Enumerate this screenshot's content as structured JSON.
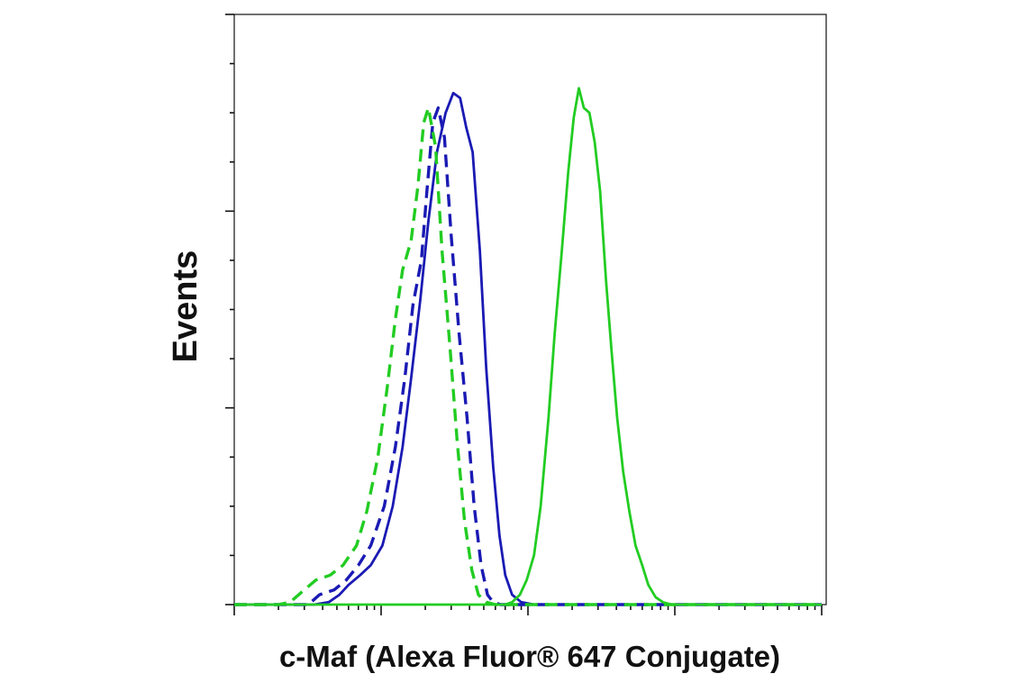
{
  "chart_data": {
    "type": "line",
    "title": "",
    "xlabel": "c-Maf (Alexa Fluor® 647 Conjugate)",
    "ylabel": "Events",
    "x_scale": "log",
    "xlim": [
      1,
      10000
    ],
    "ylim": [
      0,
      1.2
    ],
    "grid": false,
    "legend": "none",
    "series": [
      {
        "color": "#1a1ab4",
        "style": "solid",
        "points": [
          [
            1,
            0
          ],
          [
            2.0,
            0
          ],
          [
            3.5,
            0
          ],
          [
            4.4,
            0.005
          ],
          [
            5.2,
            0.02
          ],
          [
            6.0,
            0.04
          ],
          [
            7.2,
            0.06
          ],
          [
            8.5,
            0.08
          ],
          [
            10.2,
            0.12
          ],
          [
            12.0,
            0.2
          ],
          [
            14.0,
            0.32
          ],
          [
            16.0,
            0.46
          ],
          [
            18.5,
            0.62
          ],
          [
            21.0,
            0.78
          ],
          [
            24.0,
            0.92
          ],
          [
            27.5,
            1.0
          ],
          [
            31.0,
            1.04
          ],
          [
            34.5,
            1.03
          ],
          [
            38.0,
            0.97
          ],
          [
            42.0,
            0.92
          ],
          [
            47.0,
            0.72
          ],
          [
            52.0,
            0.48
          ],
          [
            58.0,
            0.28
          ],
          [
            64.0,
            0.14
          ],
          [
            70.0,
            0.06
          ],
          [
            78.0,
            0.02
          ],
          [
            90.0,
            0.005
          ],
          [
            110,
            0
          ],
          [
            10000,
            0
          ]
        ]
      },
      {
        "color": "#1a1ab4",
        "style": "dashed",
        "points": [
          [
            1,
            0
          ],
          [
            2.0,
            0
          ],
          [
            3.2,
            0
          ],
          [
            3.8,
            0.02
          ],
          [
            4.8,
            0.03
          ],
          [
            5.8,
            0.05
          ],
          [
            7.0,
            0.08
          ],
          [
            8.5,
            0.12
          ],
          [
            10.5,
            0.2
          ],
          [
            12.5,
            0.32
          ],
          [
            14.5,
            0.46
          ],
          [
            16.5,
            0.61
          ],
          [
            18.8,
            0.7
          ],
          [
            20.5,
            0.84
          ],
          [
            22.5,
            0.98
          ],
          [
            24.5,
            1.01
          ],
          [
            27.0,
            0.95
          ],
          [
            30.0,
            0.75
          ],
          [
            34.0,
            0.55
          ],
          [
            38.5,
            0.38
          ],
          [
            43.0,
            0.2
          ],
          [
            48.0,
            0.08
          ],
          [
            53.0,
            0.02
          ],
          [
            58.0,
            0.005
          ],
          [
            65,
            0
          ],
          [
            10000,
            0
          ]
        ]
      },
      {
        "color": "#22cc22",
        "style": "dashed",
        "points": [
          [
            1,
            0
          ],
          [
            2.0,
            0
          ],
          [
            2.4,
            0.005
          ],
          [
            3.0,
            0.03
          ],
          [
            3.6,
            0.05
          ],
          [
            4.5,
            0.06
          ],
          [
            5.5,
            0.08
          ],
          [
            6.8,
            0.12
          ],
          [
            8.0,
            0.19
          ],
          [
            9.5,
            0.3
          ],
          [
            11.0,
            0.44
          ],
          [
            12.5,
            0.58
          ],
          [
            14.0,
            0.68
          ],
          [
            16.0,
            0.74
          ],
          [
            17.8,
            0.85
          ],
          [
            19.5,
            0.98
          ],
          [
            21.0,
            1.01
          ],
          [
            23.5,
            0.93
          ],
          [
            26.0,
            0.72
          ],
          [
            29.5,
            0.52
          ],
          [
            33.0,
            0.33
          ],
          [
            37.0,
            0.17
          ],
          [
            41.5,
            0.07
          ],
          [
            46.0,
            0.02
          ],
          [
            52.0,
            0.005
          ],
          [
            60,
            0
          ],
          [
            10000,
            0
          ]
        ]
      },
      {
        "color": "#22cc22",
        "style": "solid",
        "points": [
          [
            1,
            0
          ],
          [
            70,
            0
          ],
          [
            78,
            0.005
          ],
          [
            88,
            0.02
          ],
          [
            98,
            0.05
          ],
          [
            110,
            0.1
          ],
          [
            122,
            0.2
          ],
          [
            138,
            0.38
          ],
          [
            152,
            0.55
          ],
          [
            170,
            0.72
          ],
          [
            188,
            0.88
          ],
          [
            205,
            0.99
          ],
          [
            222,
            1.05
          ],
          [
            240,
            1.01
          ],
          [
            262,
            1.0
          ],
          [
            285,
            0.94
          ],
          [
            310,
            0.84
          ],
          [
            340,
            0.66
          ],
          [
            370,
            0.52
          ],
          [
            405,
            0.38
          ],
          [
            445,
            0.27
          ],
          [
            490,
            0.19
          ],
          [
            540,
            0.12
          ],
          [
            600,
            0.08
          ],
          [
            660,
            0.04
          ],
          [
            740,
            0.015
          ],
          [
            830,
            0.005
          ],
          [
            950,
            0
          ],
          [
            10000,
            0
          ]
        ]
      }
    ]
  }
}
